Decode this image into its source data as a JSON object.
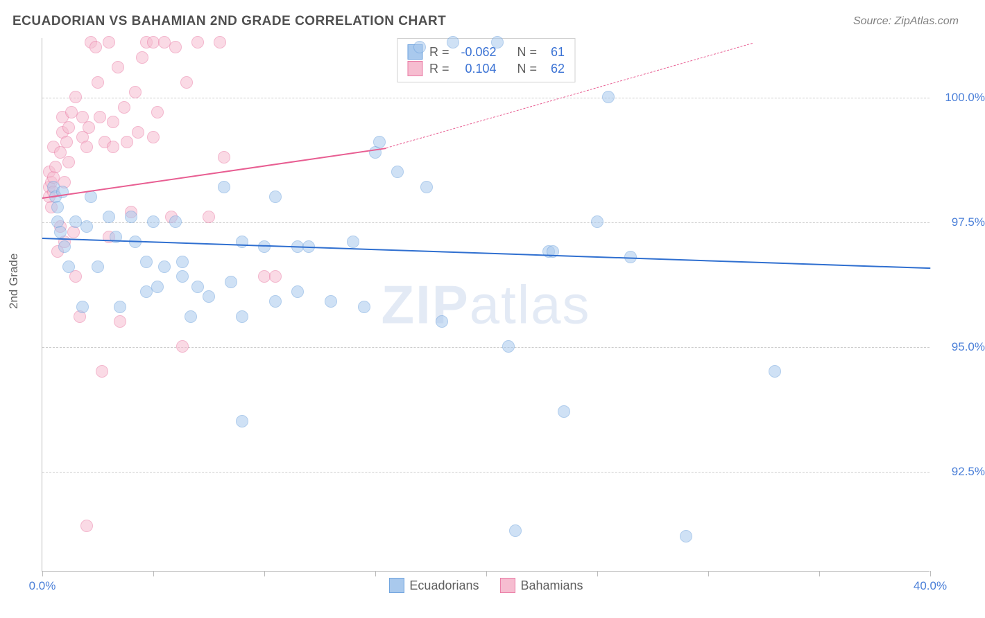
{
  "title": "ECUADORIAN VS BAHAMIAN 2ND GRADE CORRELATION CHART",
  "source": "Source: ZipAtlas.com",
  "ylabel": "2nd Grade",
  "watermark_bold": "ZIP",
  "watermark_light": "atlas",
  "chart": {
    "type": "scatter",
    "background_color": "#ffffff",
    "grid_color": "#cccccc",
    "xlim": [
      0,
      40
    ],
    "ylim": [
      90.5,
      101.2
    ],
    "y_ticks": [
      92.5,
      95.0,
      97.5,
      100.0
    ],
    "y_tick_labels": [
      "92.5%",
      "95.0%",
      "97.5%",
      "100.0%"
    ],
    "x_ticks": [
      0,
      5,
      10,
      15,
      20,
      25,
      30,
      35,
      40
    ],
    "x_tick_labels_left": "0.0%",
    "x_tick_labels_right": "40.0%",
    "marker_size": 18,
    "marker_opacity": 0.55,
    "series": [
      {
        "name": "Ecuadorians",
        "fill_color": "#a9c9ed",
        "stroke_color": "#6fa3de",
        "R": "-0.062",
        "N": "61",
        "trend": {
          "x1": 0,
          "y1": 97.2,
          "x2": 40,
          "y2": 96.6,
          "color": "#2f6fd0",
          "width": 2.5,
          "dash": "solid"
        },
        "data": [
          [
            0.5,
            98.2
          ],
          [
            0.6,
            98.0
          ],
          [
            0.7,
            97.8
          ],
          [
            0.7,
            97.5
          ],
          [
            0.8,
            97.3
          ],
          [
            0.9,
            98.1
          ],
          [
            1.0,
            97.0
          ],
          [
            1.2,
            96.6
          ],
          [
            1.5,
            97.5
          ],
          [
            1.8,
            95.8
          ],
          [
            2.0,
            97.4
          ],
          [
            2.2,
            98.0
          ],
          [
            2.5,
            96.6
          ],
          [
            3.0,
            97.6
          ],
          [
            3.3,
            97.2
          ],
          [
            3.5,
            95.8
          ],
          [
            4.0,
            97.6
          ],
          [
            4.2,
            97.1
          ],
          [
            4.7,
            96.1
          ],
          [
            4.7,
            96.7
          ],
          [
            5.0,
            97.5
          ],
          [
            5.2,
            96.2
          ],
          [
            5.5,
            96.6
          ],
          [
            6.0,
            97.5
          ],
          [
            6.3,
            96.4
          ],
          [
            6.3,
            96.7
          ],
          [
            6.7,
            95.6
          ],
          [
            7.0,
            96.2
          ],
          [
            7.5,
            96.0
          ],
          [
            8.2,
            98.2
          ],
          [
            8.5,
            96.3
          ],
          [
            9.0,
            95.6
          ],
          [
            9.0,
            97.1
          ],
          [
            9.0,
            93.5
          ],
          [
            10.0,
            97.0
          ],
          [
            10.5,
            95.9
          ],
          [
            10.5,
            98.0
          ],
          [
            11.5,
            96.1
          ],
          [
            11.5,
            97.0
          ],
          [
            12.0,
            97.0
          ],
          [
            13.0,
            95.9
          ],
          [
            14.0,
            97.1
          ],
          [
            14.5,
            95.8
          ],
          [
            15.0,
            98.9
          ],
          [
            15.2,
            99.1
          ],
          [
            16.0,
            98.5
          ],
          [
            17.0,
            101.0
          ],
          [
            17.3,
            98.2
          ],
          [
            18.0,
            95.5
          ],
          [
            18.5,
            101.1
          ],
          [
            20.5,
            101.1
          ],
          [
            21.0,
            95.0
          ],
          [
            21.3,
            91.3
          ],
          [
            22.8,
            96.9
          ],
          [
            23.0,
            96.9
          ],
          [
            23.5,
            93.7
          ],
          [
            25.0,
            97.5
          ],
          [
            25.5,
            100.0
          ],
          [
            26.5,
            96.8
          ],
          [
            33.0,
            94.5
          ],
          [
            29.0,
            91.2
          ]
        ]
      },
      {
        "name": "Bahamians",
        "fill_color": "#f6bdd0",
        "stroke_color": "#ea7ba5",
        "R": "0.104",
        "N": "62",
        "trend_solid": {
          "x1": 0,
          "y1": 98.0,
          "x2": 15.5,
          "y2": 99.0,
          "color": "#e85e92",
          "width": 2.5,
          "dash": "solid"
        },
        "trend_dashed": {
          "x1": 15.5,
          "y1": 99.0,
          "x2": 32,
          "y2": 101.1,
          "color": "#e85e92",
          "width": 1.5,
          "dash": "dashed"
        },
        "data": [
          [
            0.3,
            98.2
          ],
          [
            0.3,
            98.5
          ],
          [
            0.3,
            98.0
          ],
          [
            0.4,
            97.8
          ],
          [
            0.4,
            98.3
          ],
          [
            0.5,
            98.1
          ],
          [
            0.5,
            98.4
          ],
          [
            0.5,
            99.0
          ],
          [
            0.6,
            98.6
          ],
          [
            0.7,
            96.9
          ],
          [
            0.8,
            97.4
          ],
          [
            0.8,
            98.9
          ],
          [
            0.9,
            99.3
          ],
          [
            0.9,
            99.6
          ],
          [
            1.0,
            97.1
          ],
          [
            1.0,
            98.3
          ],
          [
            1.1,
            99.1
          ],
          [
            1.2,
            98.7
          ],
          [
            1.2,
            99.4
          ],
          [
            1.3,
            99.7
          ],
          [
            1.4,
            97.3
          ],
          [
            1.5,
            100.0
          ],
          [
            1.5,
            96.4
          ],
          [
            1.7,
            95.6
          ],
          [
            1.8,
            99.2
          ],
          [
            1.8,
            99.6
          ],
          [
            2.0,
            91.4
          ],
          [
            2.0,
            99.0
          ],
          [
            2.1,
            99.4
          ],
          [
            2.2,
            101.1
          ],
          [
            2.4,
            101.0
          ],
          [
            2.5,
            100.3
          ],
          [
            2.6,
            99.6
          ],
          [
            2.7,
            94.5
          ],
          [
            2.8,
            99.1
          ],
          [
            3.0,
            101.1
          ],
          [
            3.0,
            97.2
          ],
          [
            3.2,
            99.0
          ],
          [
            3.2,
            99.5
          ],
          [
            3.4,
            100.6
          ],
          [
            3.5,
            95.5
          ],
          [
            3.7,
            99.8
          ],
          [
            3.8,
            99.1
          ],
          [
            4.0,
            97.7
          ],
          [
            4.2,
            100.1
          ],
          [
            4.3,
            99.3
          ],
          [
            4.5,
            100.8
          ],
          [
            4.7,
            101.1
          ],
          [
            5.0,
            99.2
          ],
          [
            5.0,
            101.1
          ],
          [
            5.2,
            99.7
          ],
          [
            5.5,
            101.1
          ],
          [
            5.8,
            97.6
          ],
          [
            6.0,
            101.0
          ],
          [
            6.3,
            95.0
          ],
          [
            6.5,
            100.3
          ],
          [
            7.0,
            101.1
          ],
          [
            7.5,
            97.6
          ],
          [
            8.0,
            101.1
          ],
          [
            8.2,
            98.8
          ],
          [
            10.0,
            96.4
          ],
          [
            10.5,
            96.4
          ]
        ]
      }
    ]
  },
  "stats_labels": {
    "R": "R =",
    "N": "N ="
  },
  "legend_labels": {
    "s1": "Ecuadorians",
    "s2": "Bahamians"
  }
}
